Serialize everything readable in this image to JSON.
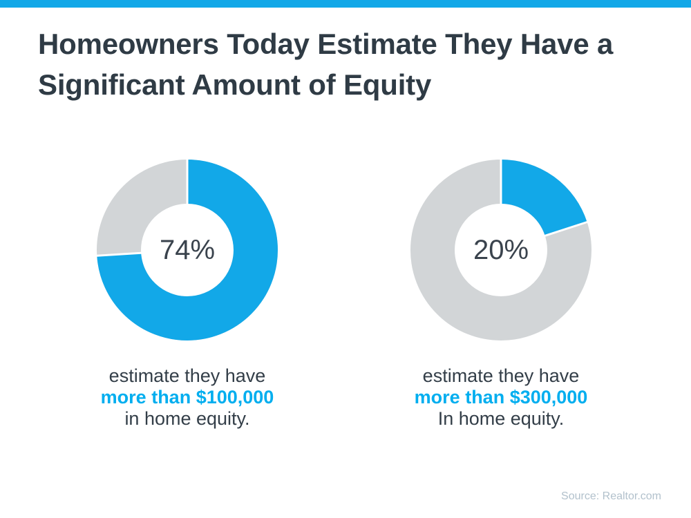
{
  "page": {
    "background": "#ffffff",
    "accent_bar_color": "#12a8e8"
  },
  "title": {
    "lines": [
      "Homeowners Today Estimate They Have a",
      "Significant Amount of Equity"
    ],
    "color": "#2f3b45"
  },
  "source": {
    "label": "Source: Realtor.com",
    "color": "#b2c1cc"
  },
  "chart_data": {
    "type": "pie",
    "variant": "donut-pair",
    "title": "Homeowners Today Estimate They Have a Significant Amount of Equity",
    "legend": "none",
    "colors": {
      "slice": "#12a8e8",
      "track": "#d2d5d7",
      "separator": "#ffffff",
      "caption_highlight": "#00aeef",
      "caption_text": "#333e48",
      "center_label": "#3a434d"
    },
    "charts": [
      {
        "name": "more-than-100k",
        "value_pct": 74,
        "remainder_pct": 26,
        "center_label": "74%",
        "caption_lines": [
          "estimate they have",
          "more than $100,000",
          "in home equity."
        ]
      },
      {
        "name": "more-than-300k",
        "value_pct": 20,
        "remainder_pct": 80,
        "center_label": "20%",
        "caption_lines": [
          "estimate they have",
          "more than $300,000",
          "In home equity."
        ]
      }
    ]
  }
}
